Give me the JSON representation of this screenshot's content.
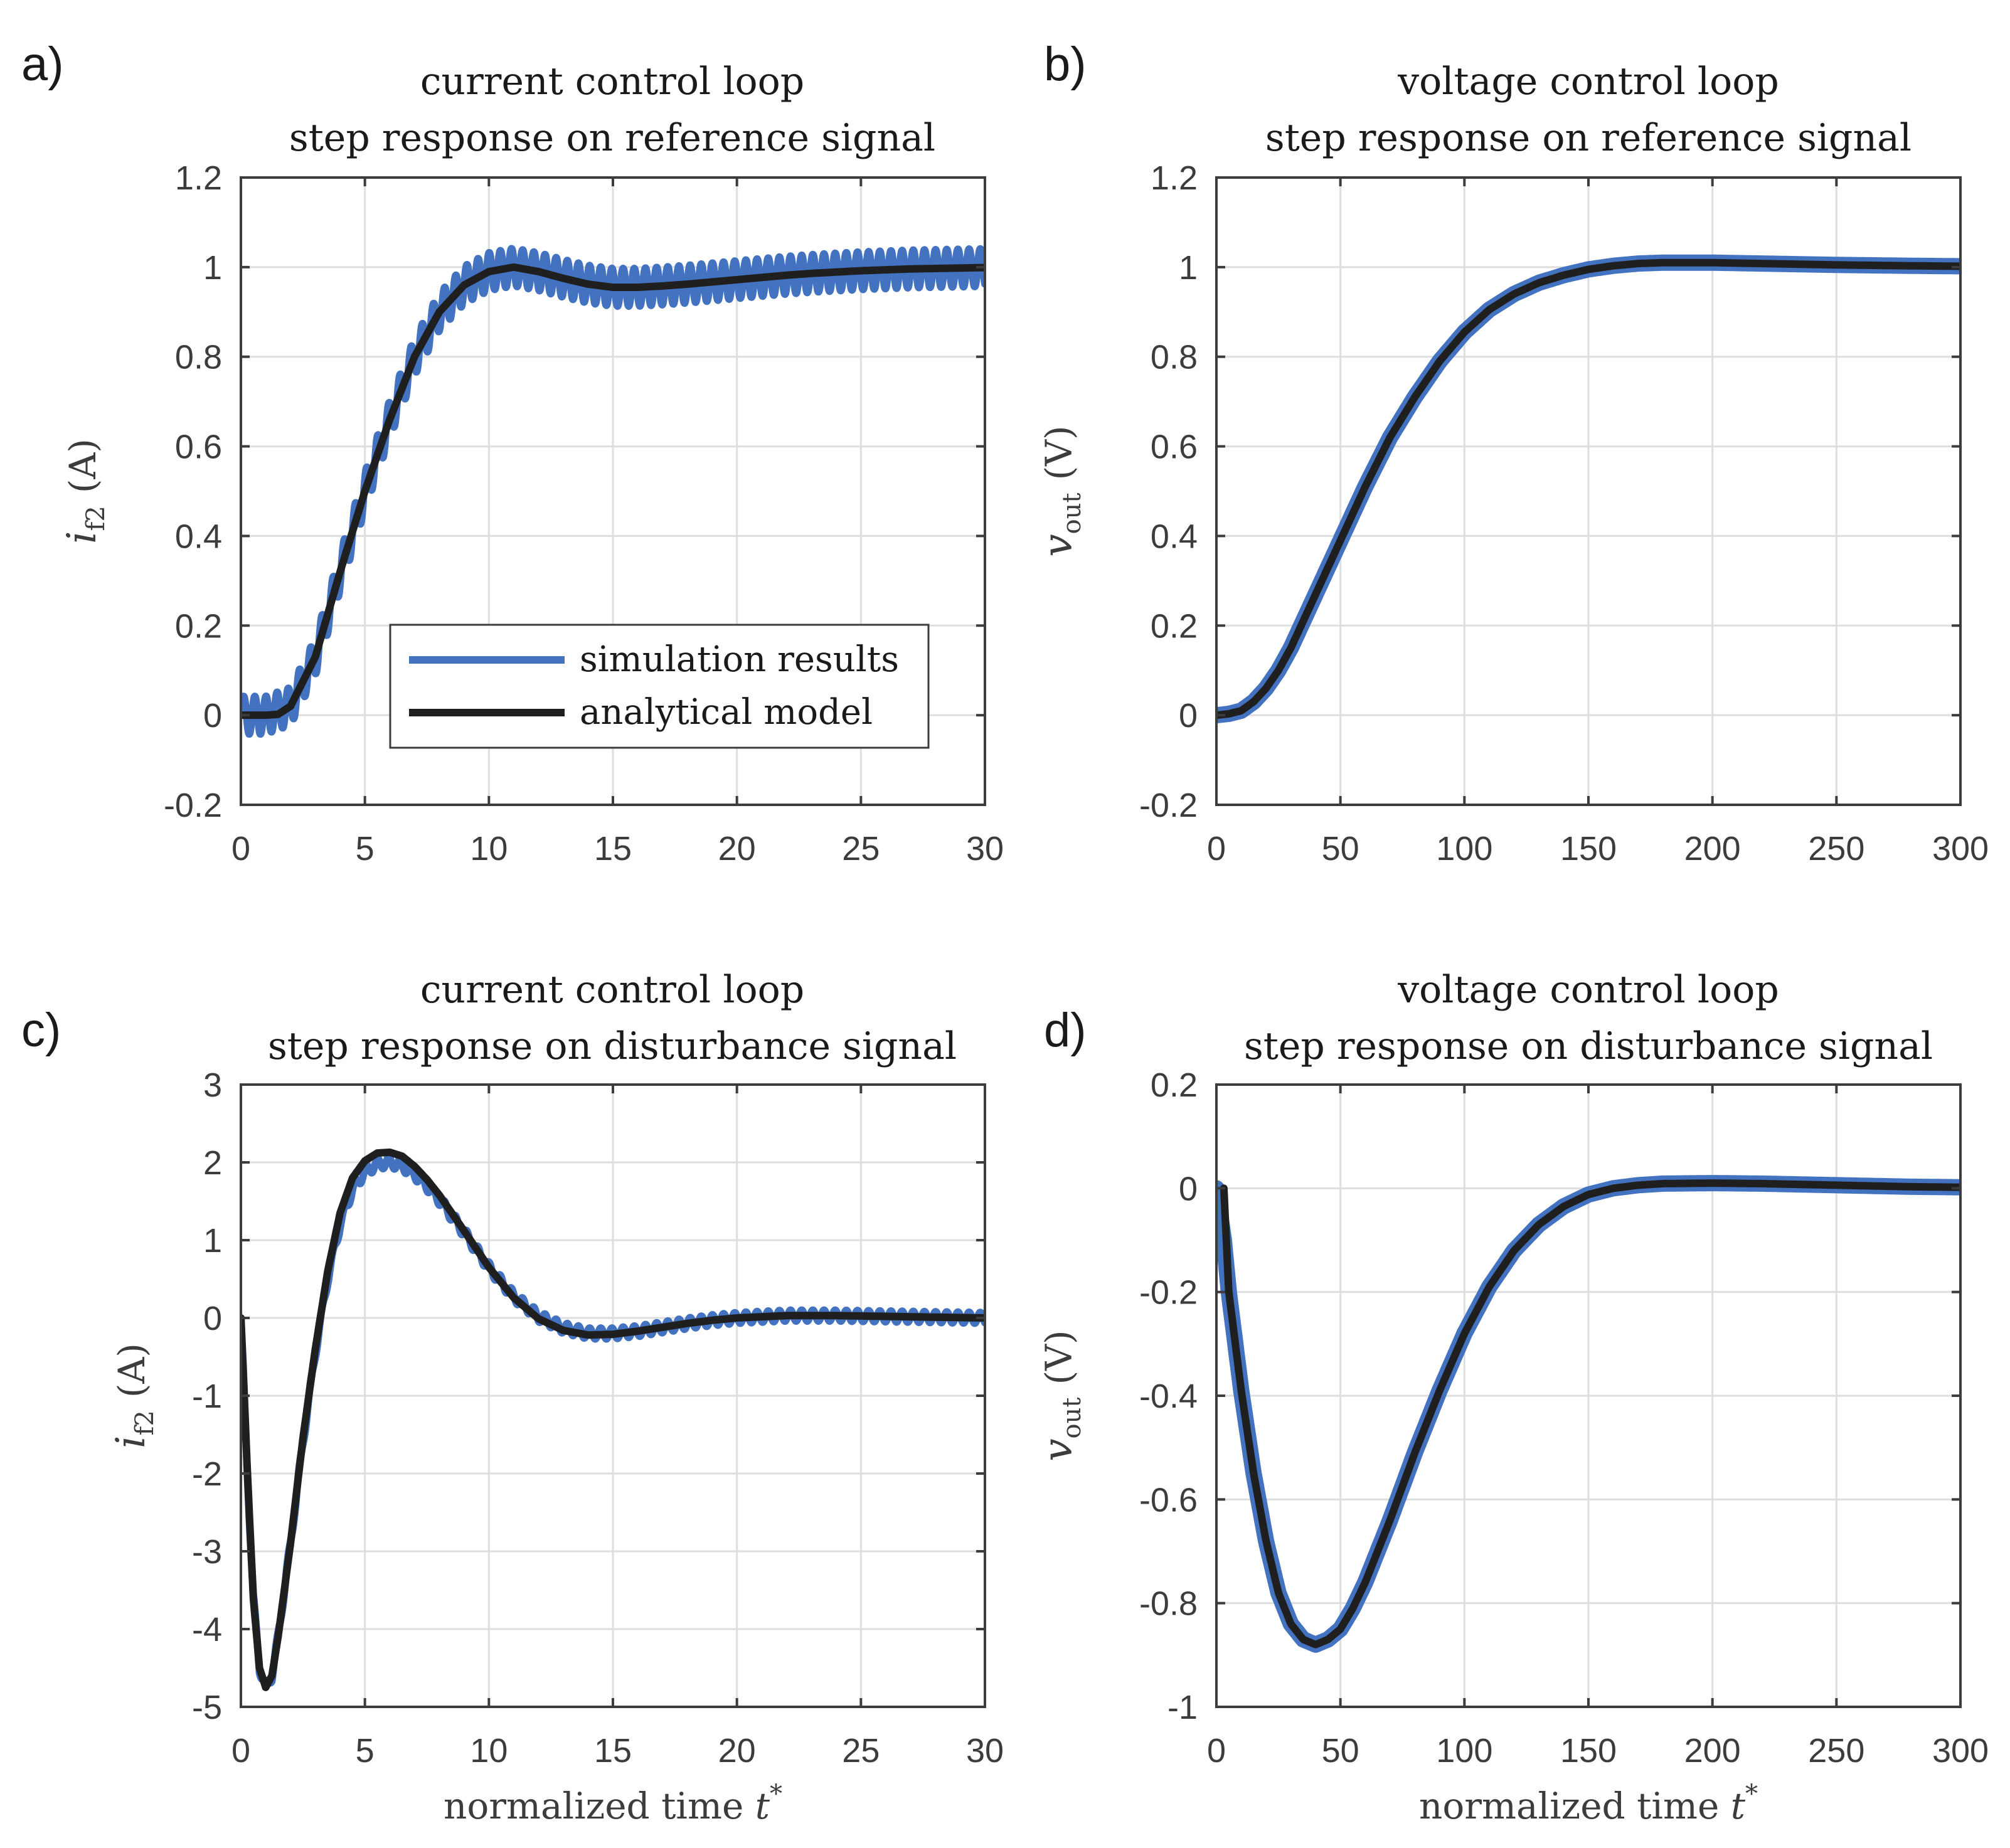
{
  "chart_data": [
    {
      "panel_label": "a)",
      "type": "line",
      "title_lines": [
        "current control loop",
        "step response on reference signal"
      ],
      "ylabel_main": "i",
      "ylabel_sub": "f2",
      "ylabel_unit": "(A)",
      "xlabel_text": "",
      "xlabel_sup": "",
      "xlim": [
        0,
        30
      ],
      "ylim": [
        -0.2,
        1.2
      ],
      "xticks": [
        0,
        5,
        10,
        15,
        20,
        25,
        30
      ],
      "yticks": [
        -0.2,
        0,
        0.2,
        0.4,
        0.6,
        0.8,
        1,
        1.2
      ],
      "grid": true,
      "legend": {
        "position": "lower-right",
        "entries": [
          "simulation results",
          "analytical model"
        ]
      },
      "series": [
        {
          "name": "simulation results",
          "color": "#4272c0",
          "ripple": {
            "amplitude": 0.042,
            "period": 0.45
          },
          "x": [
            0,
            1,
            2,
            3,
            4,
            5,
            6,
            7,
            8,
            9,
            10,
            11,
            12,
            13,
            14,
            15,
            16,
            17,
            18,
            19,
            20,
            21,
            22,
            23,
            24,
            25,
            26,
            27,
            28,
            29,
            30
          ],
          "y": [
            0,
            0,
            0.02,
            0.13,
            0.32,
            0.5,
            0.66,
            0.8,
            0.9,
            0.96,
            0.99,
            1.0,
            0.99,
            0.975,
            0.962,
            0.955,
            0.955,
            0.958,
            0.962,
            0.967,
            0.972,
            0.977,
            0.982,
            0.986,
            0.989,
            0.992,
            0.994,
            0.996,
            0.997,
            0.998,
            0.999
          ]
        },
        {
          "name": "analytical model",
          "color": "#1f1f1f",
          "x": [
            0,
            1,
            1.5,
            2,
            3,
            4,
            5,
            6,
            7,
            8,
            9,
            10,
            11,
            12,
            13,
            14,
            15,
            16,
            17,
            18,
            19,
            20,
            21,
            22,
            23,
            24,
            25,
            26,
            27,
            28,
            29,
            30
          ],
          "y": [
            0,
            0,
            0.002,
            0.02,
            0.13,
            0.32,
            0.5,
            0.66,
            0.8,
            0.9,
            0.96,
            0.99,
            1.0,
            0.99,
            0.975,
            0.962,
            0.955,
            0.955,
            0.958,
            0.962,
            0.967,
            0.972,
            0.977,
            0.982,
            0.986,
            0.989,
            0.992,
            0.994,
            0.996,
            0.997,
            0.998,
            0.999
          ]
        }
      ]
    },
    {
      "panel_label": "b)",
      "type": "line",
      "title_lines": [
        "voltage control loop",
        "step response on reference signal"
      ],
      "ylabel_main": "v",
      "ylabel_sub": "out",
      "ylabel_unit": "(V)",
      "xlabel_text": "",
      "xlabel_sup": "",
      "xlim": [
        0,
        300
      ],
      "ylim": [
        -0.2,
        1.2
      ],
      "xticks": [
        0,
        50,
        100,
        150,
        200,
        250,
        300
      ],
      "yticks": [
        -0.2,
        0,
        0.2,
        0.4,
        0.6,
        0.8,
        1,
        1.2
      ],
      "grid": true,
      "series": [
        {
          "name": "simulation results",
          "color": "#4272c0",
          "x": [
            0,
            5,
            10,
            15,
            20,
            25,
            30,
            40,
            50,
            60,
            70,
            80,
            90,
            100,
            110,
            120,
            130,
            140,
            150,
            160,
            170,
            180,
            200,
            220,
            250,
            280,
            300
          ],
          "y": [
            0,
            0.003,
            0.01,
            0.03,
            0.06,
            0.1,
            0.15,
            0.27,
            0.39,
            0.51,
            0.62,
            0.71,
            0.79,
            0.855,
            0.905,
            0.94,
            0.965,
            0.982,
            0.995,
            1.003,
            1.008,
            1.01,
            1.01,
            1.008,
            1.005,
            1.003,
            1.002
          ]
        },
        {
          "name": "analytical model",
          "color": "#1f1f1f",
          "x": [
            0,
            5,
            10,
            15,
            20,
            25,
            30,
            40,
            50,
            60,
            70,
            80,
            90,
            100,
            110,
            120,
            130,
            140,
            150,
            160,
            170,
            180,
            200,
            220,
            250,
            280,
            300
          ],
          "y": [
            0,
            0.003,
            0.01,
            0.03,
            0.06,
            0.1,
            0.15,
            0.27,
            0.39,
            0.51,
            0.62,
            0.71,
            0.79,
            0.855,
            0.905,
            0.94,
            0.965,
            0.982,
            0.995,
            1.003,
            1.008,
            1.01,
            1.01,
            1.008,
            1.005,
            1.003,
            1.002
          ]
        }
      ]
    },
    {
      "panel_label": "c)",
      "type": "line",
      "title_lines": [
        "current control loop",
        "step response on disturbance signal"
      ],
      "ylabel_main": "i",
      "ylabel_sub": "f2",
      "ylabel_unit": "(A)",
      "xlabel_text": "normalized time ",
      "xlabel_sup": "*",
      "xlabel_var": "t",
      "xlim": [
        0,
        30
      ],
      "ylim": [
        -5,
        3
      ],
      "xticks": [
        0,
        5,
        10,
        15,
        20,
        25,
        30
      ],
      "yticks": [
        -5,
        -4,
        -3,
        -2,
        -1,
        0,
        1,
        2,
        3
      ],
      "grid": true,
      "series": [
        {
          "name": "simulation results",
          "color": "#4272c0",
          "ripple": {
            "amplitude": 0.07,
            "period": 0.45
          },
          "x": [
            0,
            0.25,
            0.5,
            0.75,
            1.0,
            1.25,
            1.5,
            2.0,
            2.5,
            3.0,
            3.5,
            4.0,
            4.5,
            5.0,
            5.5,
            6.0,
            6.5,
            7.0,
            7.5,
            8.0,
            9.0,
            10.0,
            11.0,
            12.0,
            13.0,
            14.0,
            15.0,
            16.0,
            17.0,
            18.0,
            19.0,
            20.0,
            22.0,
            24.0,
            26.0,
            28.0,
            30.0
          ],
          "y": [
            0,
            -1.9,
            -3.6,
            -4.5,
            -4.75,
            -4.6,
            -4.1,
            -2.9,
            -1.6,
            -0.45,
            0.5,
            1.2,
            1.65,
            1.88,
            1.98,
            2.0,
            1.96,
            1.85,
            1.7,
            1.52,
            1.1,
            0.65,
            0.28,
            0.02,
            -0.13,
            -0.2,
            -0.2,
            -0.17,
            -0.12,
            -0.07,
            -0.03,
            0.0,
            0.03,
            0.03,
            0.02,
            0.01,
            0.0
          ]
        },
        {
          "name": "analytical model",
          "color": "#1f1f1f",
          "x": [
            0,
            0.25,
            0.5,
            0.75,
            1.0,
            1.25,
            1.5,
            2.0,
            2.5,
            3.0,
            3.5,
            4.0,
            4.5,
            5.0,
            5.5,
            6.0,
            6.5,
            7.0,
            7.5,
            8.0,
            9.0,
            10.0,
            11.0,
            12.0,
            13.0,
            14.0,
            15.0,
            16.0,
            17.0,
            18.0,
            19.0,
            20.0,
            22.0,
            24.0,
            26.0,
            28.0,
            30.0
          ],
          "y": [
            0,
            -1.9,
            -3.6,
            -4.5,
            -4.75,
            -4.6,
            -4.1,
            -2.9,
            -1.55,
            -0.4,
            0.6,
            1.35,
            1.8,
            2.02,
            2.12,
            2.13,
            2.08,
            1.95,
            1.78,
            1.58,
            1.12,
            0.65,
            0.26,
            -0.01,
            -0.16,
            -0.22,
            -0.21,
            -0.17,
            -0.12,
            -0.07,
            -0.03,
            0.0,
            0.03,
            0.03,
            0.02,
            0.01,
            0.0
          ]
        }
      ]
    },
    {
      "panel_label": "d)",
      "type": "line",
      "title_lines": [
        "voltage control loop",
        "step response on disturbance signal"
      ],
      "ylabel_main": "v",
      "ylabel_sub": "out",
      "ylabel_unit": "(V)",
      "xlabel_text": "normalized time ",
      "xlabel_sup": "*",
      "xlabel_var": "t",
      "xlim": [
        0,
        300
      ],
      "ylim": [
        -1,
        0.2
      ],
      "xticks": [
        0,
        50,
        100,
        150,
        200,
        250,
        300
      ],
      "yticks": [
        -1,
        -0.8,
        -0.6,
        -0.4,
        -0.2,
        0,
        0.2
      ],
      "grid": true,
      "series": [
        {
          "name": "simulation results",
          "color": "#4272c0",
          "x": [
            0,
            3,
            5,
            10,
            15,
            20,
            25,
            30,
            35,
            40,
            45,
            50,
            55,
            60,
            70,
            80,
            90,
            100,
            110,
            120,
            130,
            140,
            150,
            160,
            170,
            180,
            200,
            220,
            250,
            280,
            300
          ],
          "y": [
            0,
            -0.1,
            -0.2,
            -0.39,
            -0.55,
            -0.68,
            -0.78,
            -0.84,
            -0.87,
            -0.88,
            -0.87,
            -0.85,
            -0.81,
            -0.76,
            -0.64,
            -0.51,
            -0.39,
            -0.28,
            -0.19,
            -0.12,
            -0.07,
            -0.035,
            -0.012,
            0.0,
            0.006,
            0.009,
            0.01,
            0.009,
            0.006,
            0.003,
            0.002
          ]
        },
        {
          "name": "analytical model",
          "color": "#1f1f1f",
          "x": [
            3,
            5,
            10,
            15,
            20,
            25,
            30,
            35,
            40,
            45,
            50,
            55,
            60,
            70,
            80,
            90,
            100,
            110,
            120,
            130,
            140,
            150,
            160,
            170,
            180,
            200,
            220,
            250,
            280,
            300
          ],
          "y": [
            0,
            -0.2,
            -0.39,
            -0.55,
            -0.68,
            -0.78,
            -0.84,
            -0.87,
            -0.88,
            -0.87,
            -0.85,
            -0.81,
            -0.76,
            -0.64,
            -0.51,
            -0.39,
            -0.28,
            -0.19,
            -0.12,
            -0.07,
            -0.035,
            -0.012,
            0.0,
            0.006,
            0.009,
            0.01,
            0.009,
            0.006,
            0.003,
            0.002
          ]
        }
      ]
    }
  ]
}
